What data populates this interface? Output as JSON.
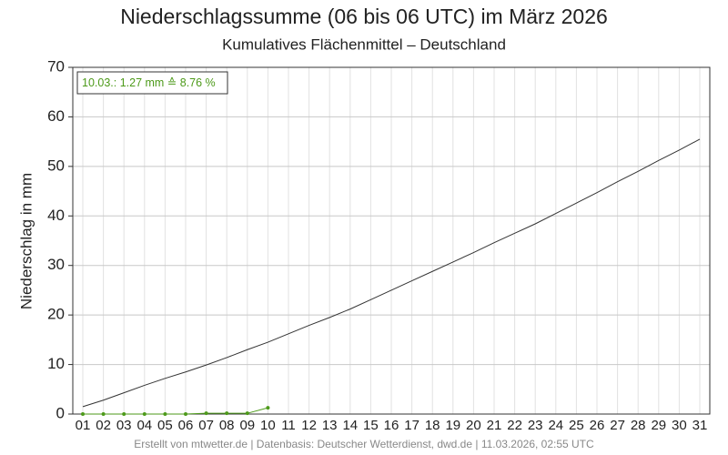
{
  "chart_data": {
    "type": "line",
    "title": "Niederschlagssumme (06 bis 06 UTC) im März 2026",
    "subtitle": "Kumulatives Flächenmittel – Deutschland",
    "y_label": "Niederschlag in mm",
    "annotation": "10.03.: 1.27 mm ≙ 8.76 %",
    "footer": "Erstellt von mtwetter.de | Datenbasis: Deutscher Wetterdienst, dwd.de | 11.03.2026, 02:55 UTC",
    "categories": [
      "01",
      "02",
      "03",
      "04",
      "05",
      "06",
      "07",
      "08",
      "09",
      "10",
      "11",
      "12",
      "13",
      "14",
      "15",
      "16",
      "17",
      "18",
      "19",
      "20",
      "21",
      "22",
      "23",
      "24",
      "25",
      "26",
      "27",
      "28",
      "29",
      "30",
      "31"
    ],
    "series": [
      {
        "color": "#333333",
        "values": [
          1.5,
          2.8,
          4.3,
          5.8,
          7.2,
          8.5,
          9.9,
          11.4,
          13.0,
          14.5,
          16.2,
          17.9,
          19.5,
          21.2,
          23.1,
          25.0,
          26.9,
          28.8,
          30.7,
          32.6,
          34.6,
          36.5,
          38.4,
          40.5,
          42.6,
          44.7,
          46.9,
          49.0,
          51.2,
          53.3,
          55.5
        ]
      },
      {
        "color": "#4d9a1a",
        "markers": true,
        "values": [
          0,
          0,
          0,
          0,
          0,
          0,
          0.15,
          0.15,
          0.15,
          1.27,
          null,
          null,
          null,
          null,
          null,
          null,
          null,
          null,
          null,
          null,
          null,
          null,
          null,
          null,
          null,
          null,
          null,
          null,
          null,
          null,
          null
        ]
      }
    ],
    "ylim": [
      0,
      70
    ],
    "yticks": [
      0,
      10,
      20,
      30,
      40,
      50,
      60,
      70
    ],
    "grid": true
  }
}
